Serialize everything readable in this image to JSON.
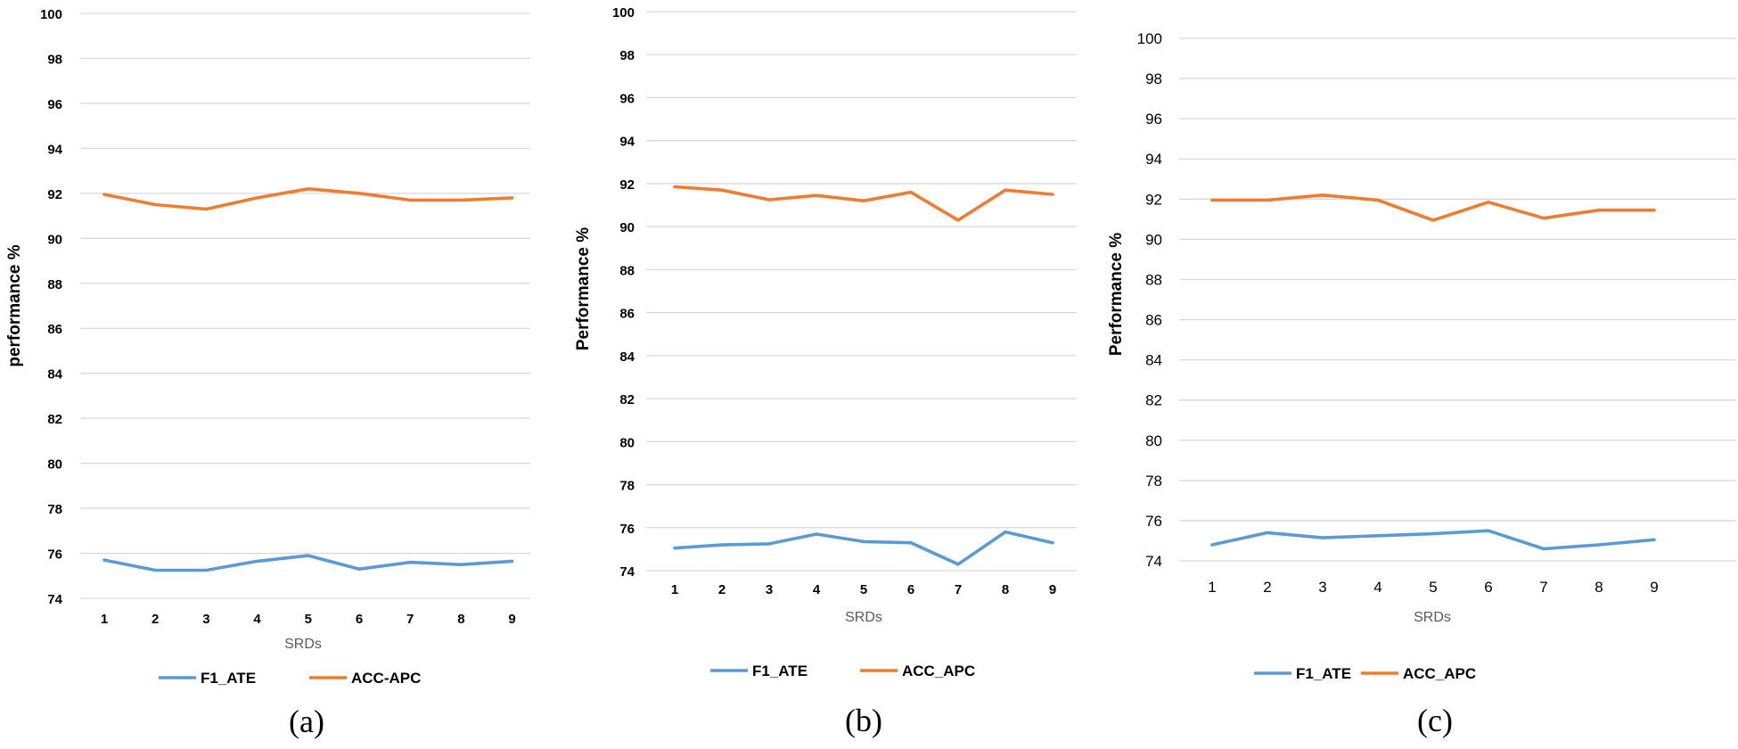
{
  "chart_data": [
    {
      "type": "line",
      "panel": "(a)",
      "caption": "(a)",
      "title": "",
      "xlabel": "SRDs",
      "ylabel": "performance %",
      "ylim": [
        74,
        100
      ],
      "y_ticks": [
        74,
        76,
        78,
        80,
        82,
        84,
        86,
        88,
        90,
        92,
        94,
        96,
        98,
        100
      ],
      "categories": [
        "1",
        "2",
        "3",
        "4",
        "5",
        "6",
        "7",
        "8",
        "9"
      ],
      "grid": true,
      "legend_position": "bottom",
      "series": [
        {
          "name": "F1_ATE",
          "color": "#5b9bd5",
          "values": [
            75.7,
            75.25,
            75.25,
            75.65,
            75.9,
            75.3,
            75.6,
            75.5,
            75.65
          ]
        },
        {
          "name": "ACC-APC",
          "color": "#ed7d31",
          "values": [
            91.95,
            91.5,
            91.3,
            91.8,
            92.2,
            92.0,
            91.7,
            91.7,
            91.8
          ]
        }
      ]
    },
    {
      "type": "line",
      "panel": "(b)",
      "caption": "(b)",
      "title": "",
      "xlabel": "SRDs",
      "ylabel": "Performance %",
      "ylim": [
        74,
        100
      ],
      "y_ticks": [
        74,
        76,
        78,
        80,
        82,
        84,
        86,
        88,
        90,
        92,
        94,
        96,
        98,
        100
      ],
      "categories": [
        "1",
        "2",
        "3",
        "4",
        "5",
        "6",
        "7",
        "8",
        "9"
      ],
      "grid": true,
      "legend_position": "bottom",
      "series": [
        {
          "name": "F1_ATE",
          "color": "#5b9bd5",
          "values": [
            75.05,
            75.2,
            75.25,
            75.7,
            75.35,
            75.3,
            74.3,
            75.8,
            75.3
          ]
        },
        {
          "name": "ACC_APC",
          "color": "#ed7d31",
          "values": [
            91.85,
            91.7,
            91.25,
            91.45,
            91.2,
            91.6,
            90.3,
            91.7,
            91.5
          ]
        }
      ]
    },
    {
      "type": "line",
      "panel": "(c)",
      "caption": "(c)",
      "title": "",
      "xlabel": "SRDs",
      "ylabel": "Performance %",
      "ylim": [
        74,
        100
      ],
      "y_ticks": [
        74,
        76,
        78,
        80,
        82,
        84,
        86,
        88,
        90,
        92,
        94,
        96,
        98,
        100
      ],
      "categories": [
        "1",
        "2",
        "3",
        "4",
        "5",
        "6",
        "7",
        "8",
        "9"
      ],
      "grid": true,
      "legend_position": "bottom",
      "series": [
        {
          "name": "F1_ATE",
          "color": "#5b9bd5",
          "values": [
            74.8,
            75.4,
            75.15,
            75.25,
            75.35,
            75.5,
            74.6,
            74.8,
            75.05
          ]
        },
        {
          "name": "ACC_APC",
          "color": "#ed7d31",
          "values": [
            91.95,
            91.95,
            92.2,
            91.95,
            90.95,
            91.85,
            91.05,
            91.45,
            91.45
          ]
        }
      ]
    }
  ]
}
